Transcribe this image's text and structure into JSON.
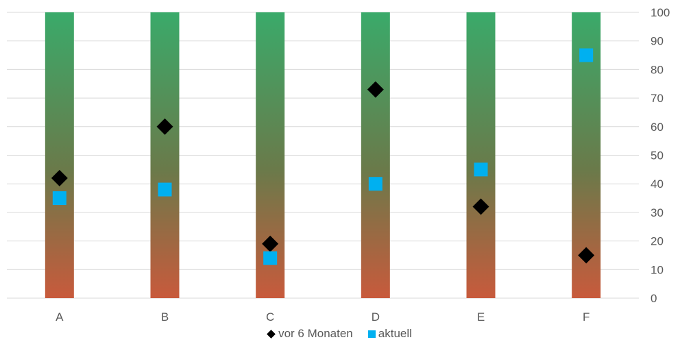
{
  "chart_data": {
    "type": "scatter",
    "title": "",
    "xlabel": "",
    "ylabel": "",
    "categories": [
      "A",
      "B",
      "C",
      "D",
      "E",
      "F"
    ],
    "ylim": [
      0,
      100
    ],
    "y_ticks": [
      "0",
      "10",
      "20",
      "30",
      "40",
      "50",
      "60",
      "70",
      "80",
      "90",
      "100"
    ],
    "y_axis_side": "right",
    "grid": true,
    "legend_position": "bottom",
    "background_bars": {
      "values": [
        100,
        100,
        100,
        100,
        100,
        100
      ],
      "gradient_top_color": "#3aaa6a",
      "gradient_bottom_color": "#c85a3c"
    },
    "series": [
      {
        "name": "vor 6 Monaten",
        "marker": "diamond",
        "color": "#000000",
        "values": [
          42,
          60,
          19,
          73,
          32,
          15
        ]
      },
      {
        "name": "aktuell",
        "marker": "square",
        "color": "#00b0f0",
        "values": [
          35,
          38,
          14,
          40,
          45,
          85
        ]
      }
    ]
  }
}
